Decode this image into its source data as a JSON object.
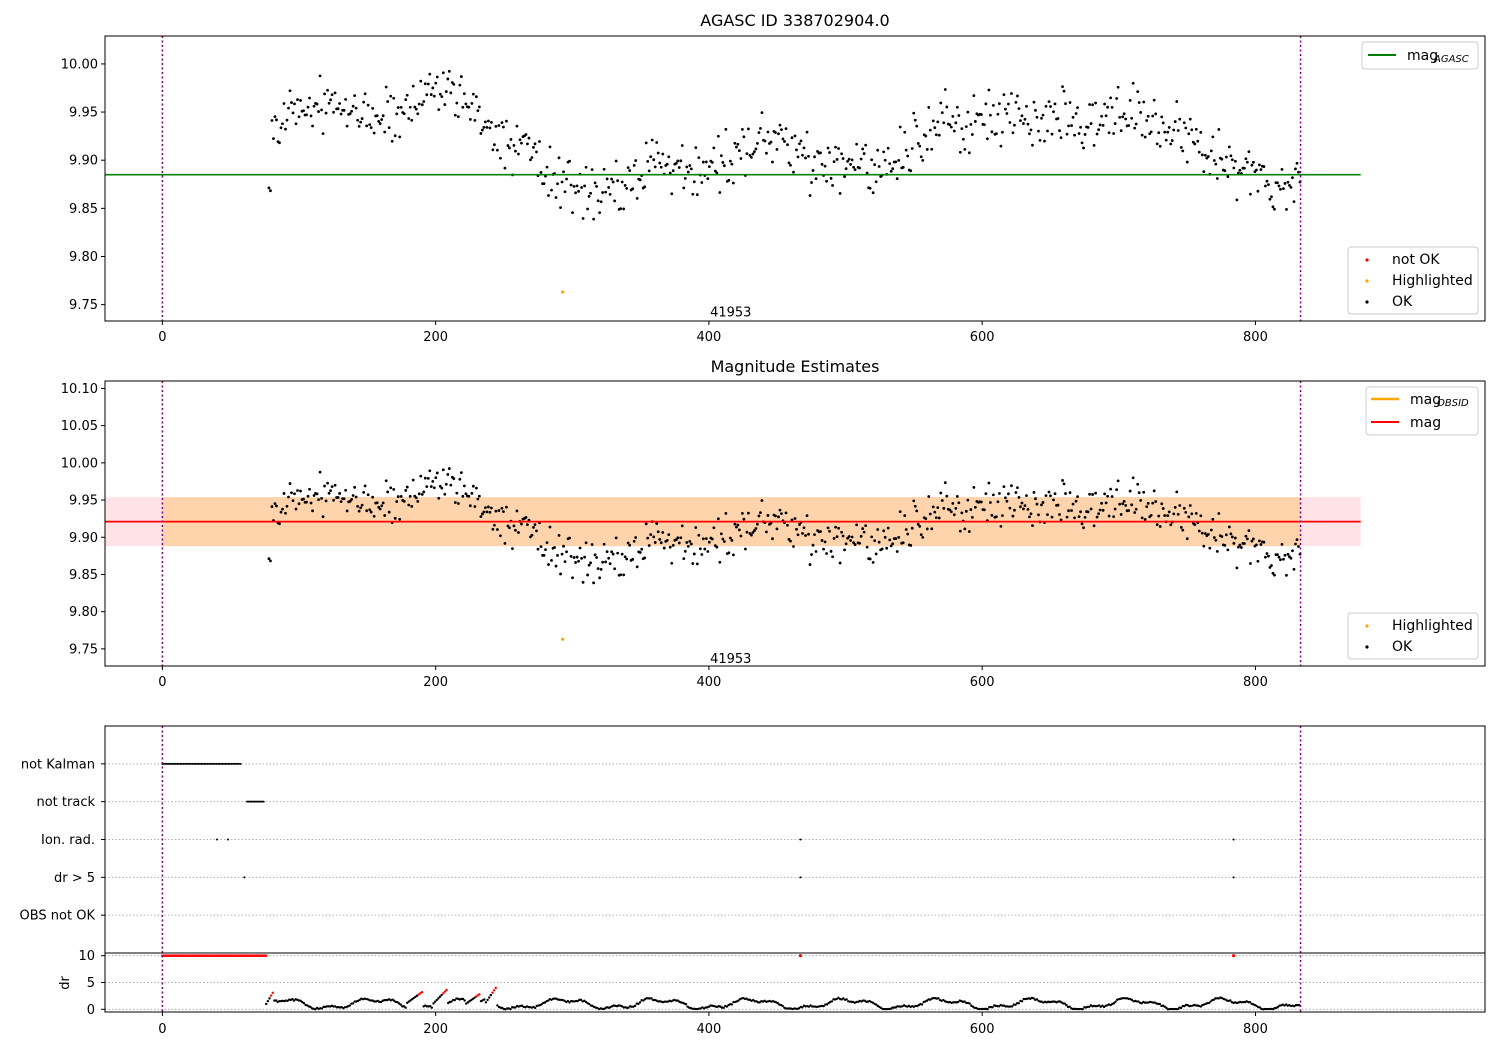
{
  "chart_data": [
    {
      "type": "scatter",
      "title": "AGASC ID 338702904.0",
      "xlim": [
        -42,
        968
      ],
      "ylim": [
        9.733,
        10.029
      ],
      "xticks": [
        0,
        200,
        400,
        600,
        800
      ],
      "yticks": [
        9.75,
        9.8,
        9.85,
        9.9,
        9.95,
        10.0
      ],
      "ytick_labels": [
        "9.75",
        "9.80",
        "9.85",
        "9.90",
        "9.95",
        "10.00"
      ],
      "mag_agasc": 9.885,
      "mag_line_x": [
        -42,
        877
      ],
      "obs_bounds": [
        0,
        833
      ],
      "annotation": {
        "text": "41953",
        "x": 416,
        "y": 9.743
      },
      "highlighted_point": {
        "x": 293,
        "y": 9.763
      },
      "legend_upper": [
        {
          "label": "mag",
          "sub": "AGASC",
          "color": "#008000"
        }
      ],
      "legend_lower": [
        {
          "label": "not OK",
          "color": "#ff0000"
        },
        {
          "label": "Highlighted",
          "color": "#ffa500"
        },
        {
          "label": "OK",
          "color": "#000000"
        }
      ]
    },
    {
      "type": "scatter",
      "title": "Magnitude Estimates",
      "xlim": [
        -42,
        968
      ],
      "ylim": [
        9.727,
        10.11
      ],
      "xticks": [
        0,
        200,
        400,
        600,
        800
      ],
      "yticks": [
        9.75,
        9.8,
        9.85,
        9.9,
        9.95,
        10.0,
        10.05,
        10.1
      ],
      "ytick_labels": [
        "9.75",
        "9.80",
        "9.85",
        "9.90",
        "9.95",
        "10.00",
        "10.05",
        "10.10"
      ],
      "mag": 9.921,
      "mag_band": [
        9.888,
        9.954
      ],
      "mag_obsid_band": [
        9.888,
        9.954
      ],
      "band_x": [
        -42,
        877
      ],
      "obs_bounds": [
        0,
        833
      ],
      "annotation": {
        "text": "41953",
        "x": 416,
        "y": 9.738
      },
      "highlighted_point": {
        "x": 293,
        "y": 9.763
      },
      "legend_upper": [
        {
          "label": "mag",
          "sub": "OBSID",
          "color": "#ffa500"
        },
        {
          "label": "mag",
          "sub": "",
          "color": "#ff0000"
        }
      ],
      "legend_lower": [
        {
          "label": "Highlighted",
          "color": "#ffa500"
        },
        {
          "label": "OK",
          "color": "#000000"
        }
      ]
    },
    {
      "type": "scatter",
      "title": "",
      "xlim": [
        -42,
        968
      ],
      "categories": [
        "not Kalman",
        "not track",
        "Ion. rad.",
        "dr > 5",
        "OBS not OK"
      ],
      "flag_ranges": [
        {
          "category": "not Kalman",
          "x_ranges": [
            [
              0,
              58
            ]
          ]
        },
        {
          "category": "not track",
          "x_ranges": [
            [
              62,
              75
            ]
          ]
        }
      ],
      "flag_points": [
        {
          "category": "Ion. rad.",
          "x": [
            40,
            48,
            467,
            784
          ]
        },
        {
          "category": "dr > 5",
          "x": [
            60,
            467,
            784
          ]
        }
      ],
      "dr_ylabel": "dr",
      "dr_yticks": [
        0,
        5,
        10
      ],
      "dr_ylim": [
        -0.5,
        10.5
      ],
      "dr_capped_value": 10,
      "dr_capped": {
        "ranges": [
          [
            0,
            76
          ]
        ],
        "points": [
          467,
          784
        ]
      },
      "obs_bounds": [
        0,
        833
      ],
      "xticks": [
        0,
        200,
        400,
        600,
        800
      ]
    }
  ]
}
